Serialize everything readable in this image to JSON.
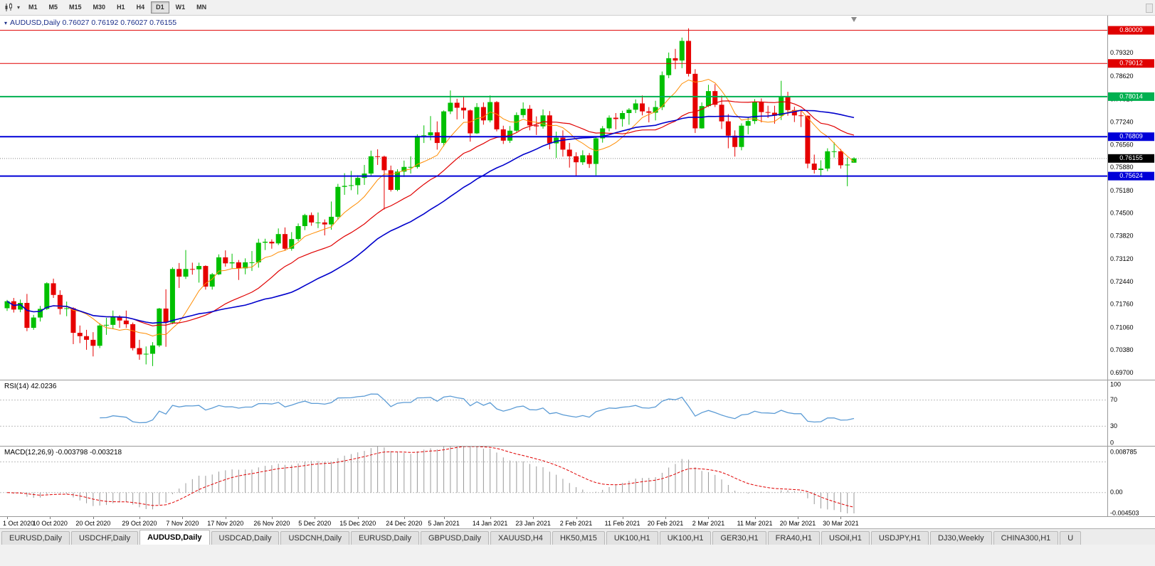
{
  "toolbar": {
    "chart_type_icon": "candlestick-chart",
    "dropdown_icon": "▾",
    "timeframes": [
      "M1",
      "M5",
      "M15",
      "M30",
      "H1",
      "H4",
      "D1",
      "W1",
      "MN"
    ],
    "active_timeframe": "D1"
  },
  "chart": {
    "symbol": "AUDUSD",
    "period": "Daily",
    "collapse_icon": "▾",
    "title_line": "AUDUSD,Daily 0.76027 0.76192 0.76027 0.76155",
    "ohlc": {
      "open": "0.76027",
      "high": "0.76192",
      "low": "0.76027",
      "close": "0.76155"
    }
  },
  "colors": {
    "up": "#00c000",
    "down": "#e60000",
    "axis_line": "#9a9a9a",
    "grid_dash": "#bdbdbd",
    "current_badge": "#000000",
    "histogram": "#999999",
    "signal": "#e00000",
    "rsi_line": "#5b9bd5",
    "title": "#1b2f8a"
  },
  "price_axis": {
    "ticks": [
      "0.79320",
      "0.78620",
      "0.77920",
      "0.77240",
      "0.76560",
      "0.75880",
      "0.75180",
      "0.74500",
      "0.73820",
      "0.73120",
      "0.72440",
      "0.71760",
      "0.71060",
      "0.70380",
      "0.69700"
    ]
  },
  "levels": [
    {
      "label": "0.80009",
      "value": 0.80009,
      "color": "#e00000",
      "width": 1
    },
    {
      "label": "0.79012",
      "value": 0.79012,
      "color": "#e00000",
      "width": 1
    },
    {
      "label": "0.78014",
      "value": 0.78014,
      "color": "#00b050",
      "width": 2
    },
    {
      "label": "0.76809",
      "value": 0.76809,
      "color": "#0000d8",
      "width": 2
    },
    {
      "label": "0.75624",
      "value": 0.75624,
      "color": "#0000d8",
      "width": 2
    }
  ],
  "current_price": {
    "label": "0.76155",
    "value": 0.76155
  },
  "rsi": {
    "display": "RSI(14) 42.0236",
    "period": 14,
    "last_value": 42.0236,
    "axis_labels": [
      "100",
      "70",
      "30",
      "0"
    ],
    "dashed_levels": [
      70,
      30
    ],
    "range": [
      0,
      100
    ]
  },
  "macd": {
    "display": "MACD(12,26,9) -0.003798 -0.003218",
    "params": [
      12,
      26,
      9
    ],
    "macd_value": -0.003798,
    "signal_value": -0.003218,
    "axis_labels": [
      "0.008785",
      "0.00",
      "-0.004503"
    ],
    "range": [
      -0.004503,
      0.008785
    ],
    "dashed_levels": [
      0.00585,
      0
    ]
  },
  "time_axis": [
    {
      "label": "1 Oct 2020",
      "i": 0
    },
    {
      "label": "10 Oct 2020",
      "i": 6.5
    },
    {
      "label": "20 Oct 2020",
      "i": 13
    },
    {
      "label": "29 Oct 2020",
      "i": 20
    },
    {
      "label": "7 Nov 2020",
      "i": 26.5
    },
    {
      "label": "17 Nov 2020",
      "i": 33
    },
    {
      "label": "26 Nov 2020",
      "i": 40
    },
    {
      "label": "5 Dec 2020",
      "i": 46.5
    },
    {
      "label": "15 Dec 2020",
      "i": 53
    },
    {
      "label": "24 Dec 2020",
      "i": 60
    },
    {
      "label": "5 Jan 2021",
      "i": 66
    },
    {
      "label": "14 Jan 2021",
      "i": 73
    },
    {
      "label": "23 Jan 2021",
      "i": 79.5
    },
    {
      "label": "2 Feb 2021",
      "i": 86
    },
    {
      "label": "11 Feb 2021",
      "i": 93
    },
    {
      "label": "20 Feb 2021",
      "i": 99.5
    },
    {
      "label": "2 Mar 2021",
      "i": 106
    },
    {
      "label": "11 Mar 2021",
      "i": 113
    },
    {
      "label": "20 Mar 2021",
      "i": 119.5
    },
    {
      "label": "30 Mar 2021",
      "i": 126
    }
  ],
  "tabs": {
    "active_index": 2,
    "items": [
      "EURUSD,Daily",
      "USDCHF,Daily",
      "AUDUSD,Daily",
      "USDCAD,Daily",
      "USDCNH,Daily",
      "EURUSD,Daily",
      "GBPUSD,Daily",
      "XAUUSD,H4",
      "HK50,M15",
      "UK100,H1",
      "UK100,H1",
      "GER30,H1",
      "FRA40,H1",
      "USOil,H1",
      "USDJPY,H1",
      "DJ30,Weekly",
      "CHINA300,H1",
      "U"
    ]
  },
  "chart_data": {
    "type": "candlestick",
    "symbol": "AUDUSD",
    "timeframe": "Daily",
    "title": "AUDUSD,Daily",
    "price_range": [
      0.695,
      0.8045
    ],
    "moving_averages": [
      {
        "name": "fast-ma",
        "period": 8,
        "color": "#ff8c00",
        "width": 1
      },
      {
        "name": "medium-ma",
        "period": 20,
        "color": "#e00000",
        "width": 1.2
      },
      {
        "name": "slow-ma",
        "period": 34,
        "color": "#0000cc",
        "width": 1.6
      }
    ],
    "candles": [
      [
        0.7165,
        0.719,
        0.7157,
        0.7186
      ],
      [
        0.7186,
        0.7196,
        0.7152,
        0.7161
      ],
      [
        0.7161,
        0.7191,
        0.7153,
        0.7181
      ],
      [
        0.7181,
        0.7208,
        0.7096,
        0.7106
      ],
      [
        0.7106,
        0.7145,
        0.71,
        0.7137
      ],
      [
        0.7137,
        0.7172,
        0.7125,
        0.7163
      ],
      [
        0.7163,
        0.7243,
        0.716,
        0.724
      ],
      [
        0.724,
        0.7254,
        0.7196,
        0.7205
      ],
      [
        0.7205,
        0.7219,
        0.7146,
        0.7163
      ],
      [
        0.7163,
        0.7185,
        0.7141,
        0.7165
      ],
      [
        0.7165,
        0.7168,
        0.7057,
        0.7091
      ],
      [
        0.7091,
        0.7113,
        0.706,
        0.7081
      ],
      [
        0.7081,
        0.71,
        0.704,
        0.707
      ],
      [
        0.707,
        0.7093,
        0.702,
        0.7052
      ],
      [
        0.7052,
        0.712,
        0.7045,
        0.7113
      ],
      [
        0.7113,
        0.7136,
        0.7085,
        0.7115
      ],
      [
        0.7115,
        0.7158,
        0.7102,
        0.7139
      ],
      [
        0.7139,
        0.7144,
        0.7106,
        0.7128
      ],
      [
        0.7128,
        0.7158,
        0.7106,
        0.7117
      ],
      [
        0.7117,
        0.7122,
        0.7038,
        0.7045
      ],
      [
        0.7045,
        0.707,
        0.701,
        0.7026
      ],
      [
        0.7026,
        0.705,
        0.6996,
        0.7028
      ],
      [
        0.7028,
        0.7063,
        0.6991,
        0.7053
      ],
      [
        0.7053,
        0.7166,
        0.7048,
        0.7164
      ],
      [
        0.7164,
        0.7222,
        0.7049,
        0.7122
      ],
      [
        0.7122,
        0.7288,
        0.7117,
        0.7283
      ],
      [
        0.7283,
        0.7301,
        0.7226,
        0.726
      ],
      [
        0.726,
        0.734,
        0.7253,
        0.7283
      ],
      [
        0.7283,
        0.7302,
        0.7266,
        0.7282
      ],
      [
        0.7282,
        0.7302,
        0.7242,
        0.7292
      ],
      [
        0.7292,
        0.7294,
        0.7221,
        0.723
      ],
      [
        0.723,
        0.7271,
        0.7221,
        0.7267
      ],
      [
        0.7267,
        0.7327,
        0.7265,
        0.7318
      ],
      [
        0.7318,
        0.7339,
        0.729,
        0.73
      ],
      [
        0.73,
        0.7329,
        0.7285,
        0.7303
      ],
      [
        0.7303,
        0.731,
        0.725,
        0.7285
      ],
      [
        0.7285,
        0.7315,
        0.7267,
        0.7303
      ],
      [
        0.7303,
        0.7337,
        0.7277,
        0.7303
      ],
      [
        0.7303,
        0.7374,
        0.7287,
        0.7362
      ],
      [
        0.7362,
        0.7374,
        0.734,
        0.7365
      ],
      [
        0.7365,
        0.7372,
        0.7344,
        0.736
      ],
      [
        0.736,
        0.7405,
        0.7355,
        0.7388
      ],
      [
        0.7388,
        0.7408,
        0.7339,
        0.7344
      ],
      [
        0.7344,
        0.7394,
        0.7338,
        0.7373
      ],
      [
        0.7373,
        0.742,
        0.7367,
        0.7412
      ],
      [
        0.7412,
        0.7449,
        0.74,
        0.7445
      ],
      [
        0.7445,
        0.7453,
        0.7413,
        0.7423
      ],
      [
        0.7423,
        0.7453,
        0.7406,
        0.7423
      ],
      [
        0.7423,
        0.7432,
        0.7384,
        0.7417
      ],
      [
        0.7417,
        0.7486,
        0.7401,
        0.744
      ],
      [
        0.744,
        0.7539,
        0.7431,
        0.753
      ],
      [
        0.753,
        0.7571,
        0.7506,
        0.7533
      ],
      [
        0.7533,
        0.7578,
        0.752,
        0.7535
      ],
      [
        0.7535,
        0.7565,
        0.7507,
        0.7557
      ],
      [
        0.7557,
        0.7596,
        0.7536,
        0.757
      ],
      [
        0.757,
        0.7639,
        0.7564,
        0.7622
      ],
      [
        0.7622,
        0.7643,
        0.7596,
        0.7621
      ],
      [
        0.7621,
        0.7624,
        0.7462,
        0.758
      ],
      [
        0.758,
        0.7594,
        0.7516,
        0.7521
      ],
      [
        0.7521,
        0.7583,
        0.7517,
        0.7576
      ],
      [
        0.7576,
        0.7609,
        0.756,
        0.759
      ],
      [
        0.759,
        0.7622,
        0.757,
        0.759
      ],
      [
        0.759,
        0.7688,
        0.7585,
        0.7683
      ],
      [
        0.7683,
        0.7715,
        0.7662,
        0.7685
      ],
      [
        0.7685,
        0.7743,
        0.767,
        0.7694
      ],
      [
        0.7694,
        0.7727,
        0.7642,
        0.7662
      ],
      [
        0.7662,
        0.776,
        0.7652,
        0.7757
      ],
      [
        0.7757,
        0.782,
        0.7749,
        0.7783
      ],
      [
        0.7783,
        0.7795,
        0.7733,
        0.7768
      ],
      [
        0.7768,
        0.78,
        0.7735,
        0.776
      ],
      [
        0.776,
        0.7763,
        0.7666,
        0.7691
      ],
      [
        0.7691,
        0.7782,
        0.7689,
        0.777
      ],
      [
        0.777,
        0.7784,
        0.7717,
        0.773
      ],
      [
        0.773,
        0.7805,
        0.7724,
        0.7785
      ],
      [
        0.7785,
        0.7788,
        0.7697,
        0.7703
      ],
      [
        0.7703,
        0.7714,
        0.7659,
        0.7669
      ],
      [
        0.7669,
        0.7713,
        0.7662,
        0.7699
      ],
      [
        0.7699,
        0.7754,
        0.7694,
        0.7746
      ],
      [
        0.7746,
        0.7784,
        0.7738,
        0.7765
      ],
      [
        0.7765,
        0.7776,
        0.77,
        0.7715
      ],
      [
        0.7715,
        0.7742,
        0.7686,
        0.7712
      ],
      [
        0.7712,
        0.7763,
        0.7705,
        0.7745
      ],
      [
        0.7745,
        0.7758,
        0.7643,
        0.7661
      ],
      [
        0.7661,
        0.7696,
        0.7617,
        0.7678
      ],
      [
        0.7678,
        0.77,
        0.7621,
        0.7642
      ],
      [
        0.7642,
        0.7662,
        0.7588,
        0.7622
      ],
      [
        0.7622,
        0.7634,
        0.7563,
        0.7604
      ],
      [
        0.7604,
        0.764,
        0.7596,
        0.7625
      ],
      [
        0.7625,
        0.7632,
        0.7587,
        0.7599
      ],
      [
        0.7599,
        0.768,
        0.7565,
        0.7676
      ],
      [
        0.7676,
        0.7713,
        0.7663,
        0.7706
      ],
      [
        0.7706,
        0.7745,
        0.7697,
        0.7738
      ],
      [
        0.7738,
        0.7752,
        0.7703,
        0.7734
      ],
      [
        0.7734,
        0.7759,
        0.7711,
        0.7752
      ],
      [
        0.7752,
        0.7767,
        0.7717,
        0.7762
      ],
      [
        0.7762,
        0.7793,
        0.7752,
        0.7781
      ],
      [
        0.7781,
        0.7805,
        0.7745,
        0.7757
      ],
      [
        0.7757,
        0.777,
        0.7724,
        0.7753
      ],
      [
        0.7753,
        0.7789,
        0.773,
        0.777
      ],
      [
        0.777,
        0.7877,
        0.7761,
        0.7866
      ],
      [
        0.7866,
        0.7934,
        0.7857,
        0.7917
      ],
      [
        0.7917,
        0.7945,
        0.7884,
        0.791
      ],
      [
        0.791,
        0.7979,
        0.7887,
        0.7969
      ],
      [
        0.7969,
        0.8007,
        0.7862,
        0.787
      ],
      [
        0.787,
        0.7884,
        0.7692,
        0.7706
      ],
      [
        0.7706,
        0.7784,
        0.7705,
        0.7773
      ],
      [
        0.7773,
        0.7837,
        0.777,
        0.7818
      ],
      [
        0.7818,
        0.7839,
        0.777,
        0.7777
      ],
      [
        0.7777,
        0.7805,
        0.7704,
        0.7727
      ],
      [
        0.7727,
        0.7749,
        0.7646,
        0.7684
      ],
      [
        0.7684,
        0.77,
        0.7621,
        0.765
      ],
      [
        0.765,
        0.7721,
        0.764,
        0.7714
      ],
      [
        0.7714,
        0.7739,
        0.7688,
        0.7728
      ],
      [
        0.7728,
        0.7794,
        0.7719,
        0.7785
      ],
      [
        0.7785,
        0.7796,
        0.7724,
        0.7755
      ],
      [
        0.7755,
        0.7774,
        0.7737,
        0.7753
      ],
      [
        0.7753,
        0.7774,
        0.772,
        0.7744
      ],
      [
        0.7744,
        0.7849,
        0.7731,
        0.78
      ],
      [
        0.78,
        0.7816,
        0.7744,
        0.7761
      ],
      [
        0.7761,
        0.7771,
        0.7725,
        0.7745
      ],
      [
        0.7745,
        0.7761,
        0.771,
        0.7744
      ],
      [
        0.7744,
        0.7745,
        0.7586,
        0.76
      ],
      [
        0.76,
        0.7627,
        0.757,
        0.7581
      ],
      [
        0.7581,
        0.761,
        0.7562,
        0.7585
      ],
      [
        0.7585,
        0.7646,
        0.7577,
        0.7637
      ],
      [
        0.7637,
        0.7664,
        0.7618,
        0.7637
      ],
      [
        0.7637,
        0.7644,
        0.7585,
        0.7595
      ],
      [
        0.7595,
        0.7618,
        0.7532,
        0.7597
      ],
      [
        0.76027,
        0.76192,
        0.76027,
        0.76155
      ]
    ]
  }
}
